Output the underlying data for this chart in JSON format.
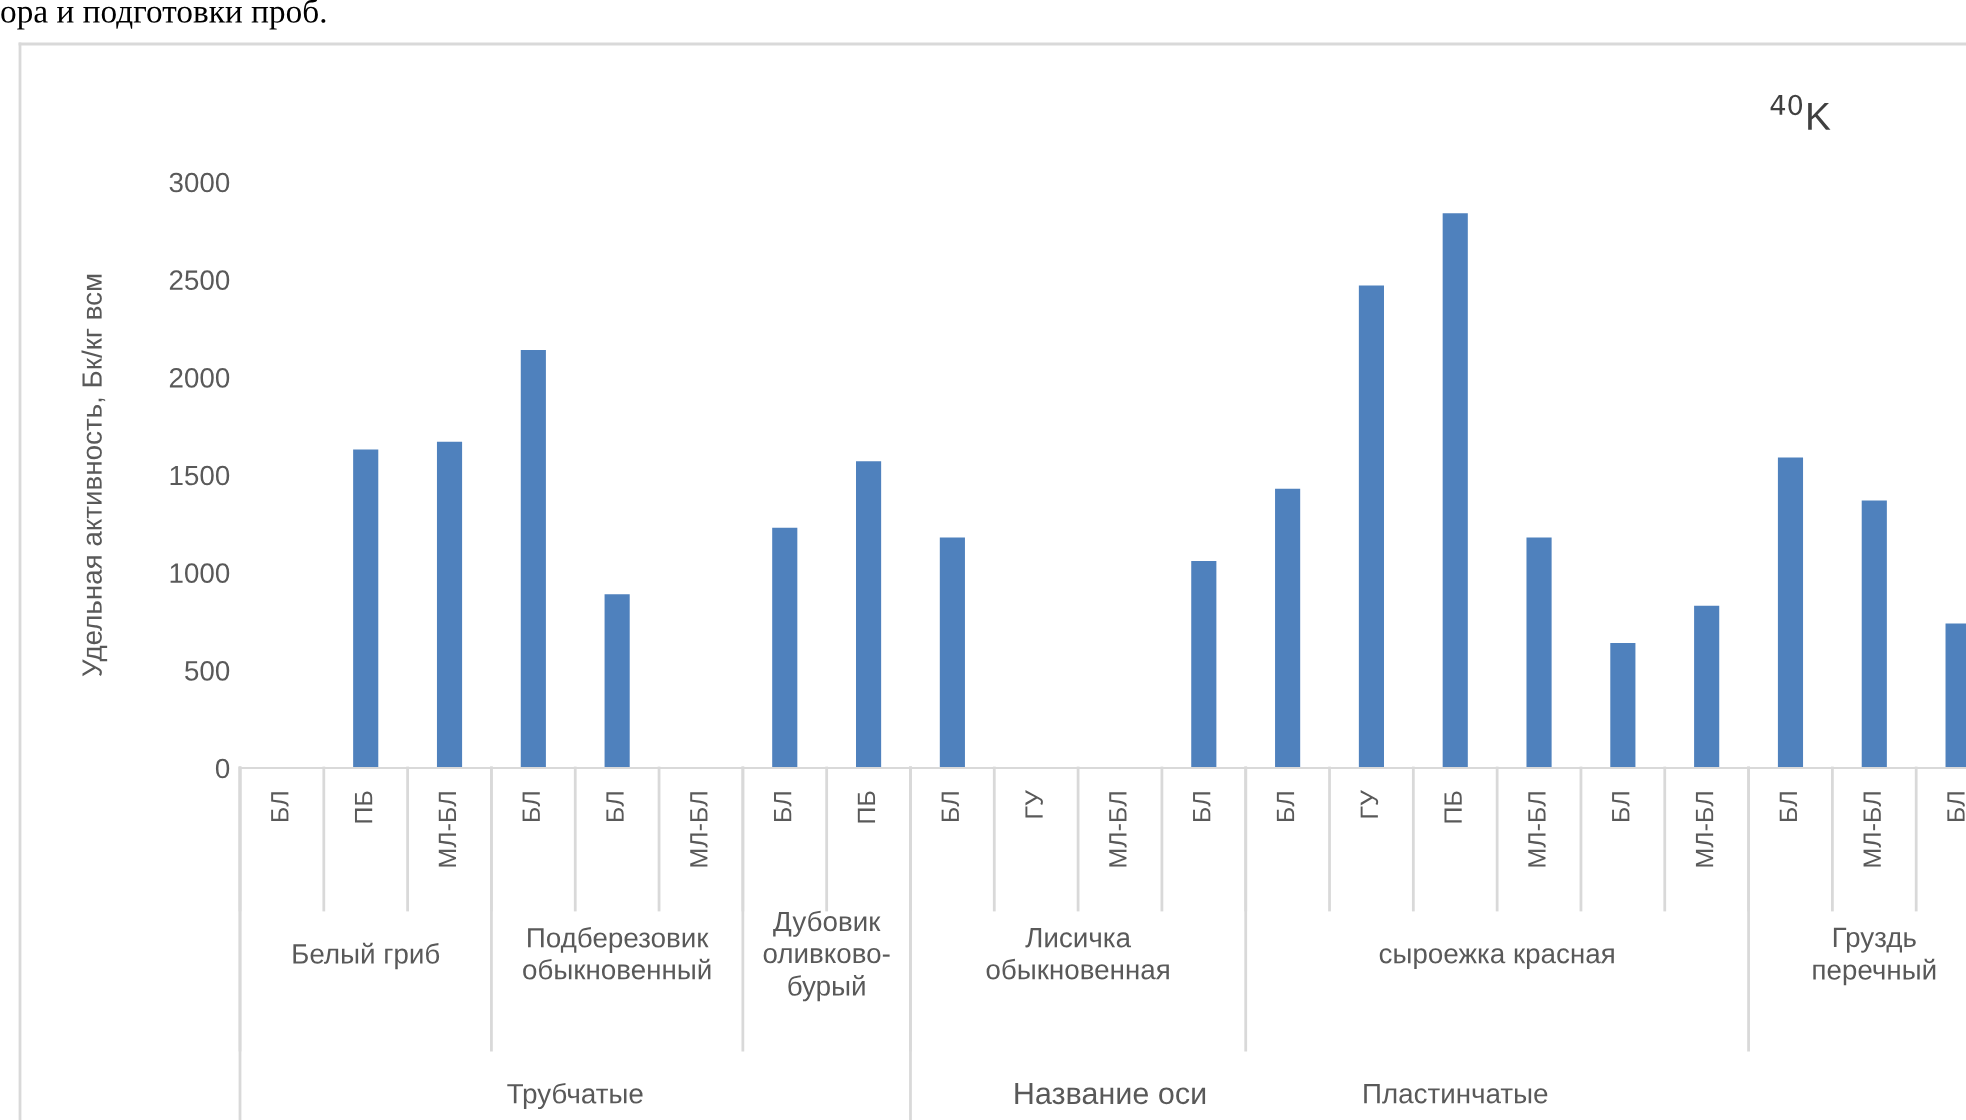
{
  "chart_data": {
    "type": "bar",
    "title": "$^{40}$K",
    "ylabel": "Удельная активность, Бк/кг всм",
    "categories": [
      "БЛ",
      "ПБ",
      "МЛ-БЛ",
      "БЛ",
      "БЛ",
      "МЛ-БЛ",
      "БЛ",
      "ПБ",
      "БЛ",
      "ГУ",
      "МЛ-БЛ",
      "БЛ",
      "БЛ",
      "ГУ",
      "ПБ",
      "МЛ-БЛ",
      "БЛ",
      "МЛ-БЛ",
      "БЛ",
      "МЛ-БЛ",
      "БЛ"
    ],
    "values": [
      null,
      1630,
      1670,
      2140,
      890,
      null,
      1230,
      1570,
      1180,
      null,
      null,
      1060,
      1430,
      2470,
      2840,
      1180,
      640,
      830,
      1590,
      1370,
      740
    ],
    "color": "#4f81bd",
    "ylim": [
      0,
      3000
    ],
    "yticks": [
      0,
      500,
      1000,
      1500,
      2000,
      2500,
      3000
    ],
    "grid": false,
    "legend": false,
    "annotations": [
      "Белый гриб",
      "Подберезовик\nобыкновенный",
      "Дубовик\nоливково-\nбурый",
      "Лисичка\nобыкновенная",
      "сыроежка красная",
      "Груздь\nперечный",
      "Трубчатые",
      "Пластинчатые",
      "ора и подготовки проб.",
      "Название оси"
    ]
  }
}
